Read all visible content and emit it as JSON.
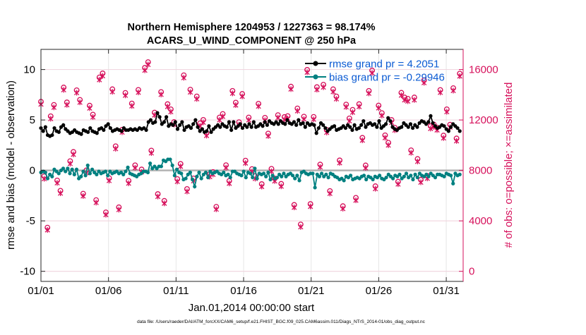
{
  "chart_data": {
    "type": "line",
    "title_line1": "Northern Hemisphere 1204953 / 1227363 = 98.174%",
    "title_line2": "ACARS_U_WIND_COMPONENT @ 250 hPa",
    "xlabel": "Jan.01,2014 00:00:00 start",
    "ylabel": "rmse and bias (model - observation)",
    "y2label": "# of obs: o=possible; ×=assimilated",
    "footer": "data file: /Users/raeder/DAI/ATM_forcXX/CAM6_setup/f.e21.FHIST_BGC.f09_025.CAM6assim.011/Diags_NTrS_2014-01/obs_diag_output.nc",
    "x_tick_labels": [
      "01/01",
      "01/06",
      "01/11",
      "01/16",
      "01/21",
      "01/26",
      "01/31"
    ],
    "x_tick_days": [
      1,
      6,
      11,
      16,
      21,
      26,
      31
    ],
    "xlim": [
      1,
      32.25
    ],
    "ylim": [
      -11,
      12
    ],
    "y_ticks": [
      -10,
      -5,
      0,
      5,
      10
    ],
    "y_tick_labels": [
      "-10",
      "-5",
      "0",
      "5",
      "10"
    ],
    "y2lim": [
      -800,
      17600
    ],
    "y2_ticks": [
      0,
      4000,
      8000,
      12000,
      16000
    ],
    "y2_tick_labels": [
      "0",
      "4000",
      "8000",
      "12000",
      "16000"
    ],
    "grid": true,
    "legend_position": "top-right",
    "legend": [
      {
        "name": "rmse grand pr = 4.2051",
        "color": "#000000"
      },
      {
        "name": "bias grand pr = -0.29946",
        "color": "#008080"
      }
    ],
    "series": [
      {
        "name": "rmse",
        "color": "#000000",
        "values": [
          4.2,
          3.9,
          4.3,
          3.5,
          3.4,
          3.5,
          4.2,
          3.9,
          3.8,
          4.3,
          4.5,
          4.1,
          3.9,
          3.7,
          3.8,
          4.0,
          3.8,
          3.7,
          3.6,
          4.0,
          3.9,
          3.8,
          4.2,
          3.9,
          3.8,
          3.7,
          4.1,
          4.2,
          4.0,
          4.4,
          4.6,
          4.2,
          3.9,
          4.0,
          4.1,
          4.0,
          3.9,
          4.2,
          4.0,
          4.0,
          4.1,
          4.0,
          4.1,
          4.0,
          4.2,
          4.1,
          4.2,
          4.0,
          4.8,
          5.0,
          4.7,
          4.8,
          5.7,
          5.3,
          4.6,
          4.8,
          5.3,
          4.4,
          4.6,
          4.5,
          4.8,
          4.1,
          4.5,
          4.8,
          4.0,
          4.3,
          4.4,
          4.2,
          4.6,
          5.0,
          4.3,
          3.9,
          4.1,
          3.8,
          3.9,
          4.4,
          3.8,
          4.1,
          4.3,
          4.5,
          4.3,
          4.6,
          4.4,
          4.3,
          4.8,
          4.0,
          4.8,
          4.2,
          4.4,
          4.6,
          4.2,
          4.5,
          4.3,
          4.6,
          4.3,
          4.8,
          4.3,
          4.4,
          4.6,
          4.4,
          4.8,
          4.5,
          4.9,
          4.7,
          4.6,
          4.8,
          4.6,
          4.9,
          4.7,
          4.6,
          5.0,
          4.7,
          4.6,
          4.8,
          4.5,
          5.0,
          4.6,
          4.7,
          4.3,
          4.7,
          4.5,
          4.6,
          4.5,
          3.7,
          4.2,
          4.7,
          4.5,
          4.2,
          3.9,
          4.1,
          4.3,
          4.4,
          4.0,
          4.1,
          4.2,
          4.4,
          4.2,
          4.5,
          4.3,
          4.0,
          4.5,
          4.1,
          4.2,
          4.5,
          4.9,
          4.3,
          4.6,
          4.7,
          4.5,
          4.6,
          4.3,
          4.9,
          4.2,
          4.4,
          4.6,
          5.2,
          4.9,
          4.3,
          4.1,
          4.0,
          4.2,
          4.3,
          4.7,
          4.5,
          4.3,
          4.6,
          4.2,
          4.5,
          4.3,
          4.7,
          4.9,
          4.8,
          4.6,
          4.8,
          5.4,
          4.7,
          4.4,
          4.2,
          4.3,
          4.5,
          4.4,
          4.1,
          3.9,
          4.3,
          4.6,
          4.4,
          4.2,
          3.9
        ]
      },
      {
        "name": "bias",
        "color": "#008080",
        "values": [
          -0.2,
          -0.1,
          -0.2,
          -0.8,
          -0.4,
          -0.6,
          0.1,
          -0.1,
          -0.3,
          0.0,
          0.2,
          -0.1,
          0.2,
          -0.3,
          0.1,
          -0.4,
          0.1,
          -0.8,
          -0.6,
          -0.1,
          -0.5,
          0.5,
          -0.3,
          0.1,
          -0.2,
          -0.4,
          -0.1,
          -0.3,
          -0.2,
          -0.1,
          -0.5,
          -0.1,
          -0.3,
          -0.2,
          -0.1,
          -0.3,
          -0.2,
          -0.4,
          -0.1,
          0.3,
          -0.3,
          -0.4,
          -0.5,
          -0.6,
          -0.4,
          -0.3,
          -0.1,
          -0.1,
          -0.2,
          0.7,
          0.2,
          0.4,
          0.2,
          0.4,
          0.4,
          1.0,
          0.9,
          1.1,
          1.1,
          0.5,
          -0.5,
          0.1,
          -0.2,
          -0.3,
          -0.9,
          -0.8,
          -0.4,
          -0.2,
          -0.9,
          -1.6,
          -0.6,
          -0.2,
          -0.8,
          -0.4,
          -0.2,
          -0.7,
          -0.1,
          -0.3,
          -0.2,
          -0.1,
          -0.3,
          -0.4,
          -0.2,
          -0.5,
          -0.4,
          -0.7,
          -0.1,
          -0.1,
          -0.3,
          -0.4,
          -0.5,
          -0.1,
          -0.7,
          -0.2,
          -0.3,
          -0.7,
          0.2,
          -0.8,
          -0.3,
          -0.4,
          -0.3,
          -0.6,
          -0.2,
          -0.9,
          -0.5,
          -0.8,
          -0.7,
          -0.4,
          -0.6,
          -0.3,
          -0.6,
          -0.4,
          -0.3,
          -0.5,
          -0.8,
          -0.5,
          -1.0,
          -0.2,
          -0.1,
          -0.3,
          -0.4,
          -0.3,
          -0.3,
          -1.7,
          -0.4,
          -0.6,
          -0.3,
          -0.6,
          -0.4,
          -0.7,
          -0.3,
          -0.4,
          -0.6,
          -0.7,
          -0.9,
          -0.8,
          -1.0,
          -0.6,
          -0.7,
          -0.5,
          -0.9,
          -0.8,
          -0.7,
          -0.8,
          -0.6,
          -0.5,
          -0.9,
          -0.6,
          -0.7,
          -0.9,
          -0.6,
          -0.7,
          -0.5,
          -0.8,
          -0.9,
          -0.7,
          -0.4,
          -0.6,
          -0.8,
          -0.5,
          -0.6,
          -0.4,
          -0.8,
          -0.6,
          -0.3,
          -0.7,
          -0.5,
          -0.9,
          -0.4,
          -0.7,
          -0.3,
          -0.5,
          -0.6,
          -0.4,
          -0.6,
          -0.3,
          -0.5,
          -0.7,
          -0.4,
          -0.4,
          -0.5,
          -0.6,
          -0.3,
          -0.4,
          -0.5,
          -1.3,
          -0.3,
          -0.5,
          -0.4
        ]
      },
      {
        "name": "# of obs possible",
        "color": "#D6105B",
        "marker": "circle",
        "axis": "right",
        "values": [
          13450,
          7540,
          3470,
          12300,
          13200,
          7210,
          6390,
          14580,
          13400,
          8740,
          9470,
          14360,
          13600,
          6160,
          8010,
          13140,
          12430,
          5650,
          15380,
          15700,
          4680,
          7390,
          14440,
          9920,
          5080,
          11230,
          14150,
          7180,
          13310,
          8410,
          14390,
          8080,
          16140,
          16590,
          9580,
          12590,
          6130,
          14220,
          5590,
          13260,
          12850,
          11840,
          7320,
          8520,
          15550,
          6530,
          14410,
          7370,
          13870,
          11740,
          12010,
          10960,
          7700,
          7880,
          5120,
          12200,
          12480,
          8420,
          7170,
          14310,
          13380,
          11830,
          14070,
          8780,
          12200,
          8110,
          7550,
          13290,
          6920,
          12180,
          10930,
          8130,
          7360,
          12390,
          6940,
          12240,
          12310,
          14650,
          5270,
          12920,
          3720,
          12270,
          15980,
          5340,
          12250,
          14610,
          8470,
          14800,
          11210,
          6370,
          14440,
          13870,
          8800,
          5170,
          13230,
          12130,
          12810,
          5830,
          13260,
          10590,
          8400,
          14310,
          15930,
          6750,
          13150,
          12550,
          10790,
          10200,
          12000,
          11390,
          7110,
          14160,
          13790,
          13690,
          9600,
          13790,
          8910,
          7260,
          15150,
          7570,
          11520,
          11650,
          11400,
          14380,
          10770,
          12850,
          11630,
          14530,
          10540,
          15680
        ]
      },
      {
        "name": "# of obs assimilated",
        "color": "#D6105B",
        "marker": "x",
        "axis": "right",
        "values": [
          13250,
          7340,
          3280,
          12100,
          13000,
          7010,
          6190,
          14390,
          13200,
          8540,
          9270,
          14160,
          13400,
          5970,
          7810,
          12940,
          12230,
          5450,
          15190,
          15500,
          4490,
          7190,
          14240,
          9720,
          4890,
          11030,
          13950,
          6980,
          13110,
          8210,
          14190,
          7880,
          15940,
          16400,
          9380,
          12390,
          5930,
          14020,
          5390,
          13060,
          12650,
          11640,
          7120,
          8320,
          15350,
          6330,
          14210,
          7170,
          13670,
          11540,
          11810,
          10760,
          7500,
          7680,
          4920,
          12000,
          12280,
          8220,
          6970,
          14110,
          13180,
          11630,
          13870,
          8580,
          12000,
          7910,
          7350,
          13090,
          6720,
          11980,
          10730,
          7930,
          7160,
          12190,
          6740,
          12040,
          12110,
          14450,
          5070,
          12720,
          3520,
          12070,
          15780,
          5140,
          12050,
          14410,
          8270,
          14600,
          11010,
          6170,
          14240,
          13670,
          8600,
          4970,
          13030,
          11930,
          12610,
          5630,
          13060,
          10390,
          8200,
          14110,
          15730,
          6550,
          12950,
          12350,
          10590,
          10000,
          11800,
          11190,
          6910,
          13960,
          13590,
          13490,
          9400,
          13590,
          8710,
          7060,
          14950,
          7370,
          11320,
          11450,
          11200,
          14180,
          10570,
          12650,
          11430,
          14330,
          10340,
          15480
        ]
      }
    ]
  }
}
